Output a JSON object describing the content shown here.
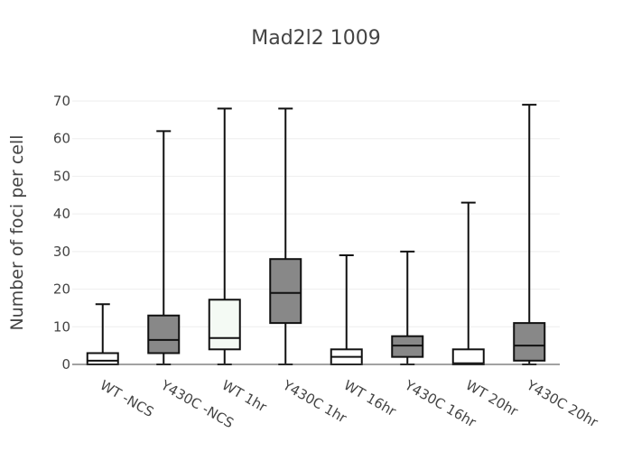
{
  "chart_data": {
    "type": "box",
    "title": "Mad2l2 1009",
    "xlabel": "",
    "ylabel": "Number of foci per cell",
    "ylim": [
      0,
      70
    ],
    "yticks": [
      0,
      10,
      20,
      30,
      40,
      50,
      60,
      70
    ],
    "grid": true,
    "categories": [
      "WT -NCS",
      "Y430C -NCS",
      "WT 1hr",
      "Y430C 1hr",
      "WT 16hr",
      "Y430C 16hr",
      "WT 20hr",
      "Y430C 20hr"
    ],
    "boxes": [
      {
        "min": 0,
        "q1": 0,
        "median": 1,
        "q3": 3,
        "max": 16,
        "fill": "#ffffff"
      },
      {
        "min": 0,
        "q1": 3,
        "median": 6.5,
        "q3": 13,
        "max": 62,
        "fill": "#888888"
      },
      {
        "min": 0,
        "q1": 4,
        "median": 7,
        "q3": 17.2,
        "max": 68,
        "fill": "#f4faf4"
      },
      {
        "min": 0,
        "q1": 11,
        "median": 19,
        "q3": 28,
        "max": 68,
        "fill": "#888888"
      },
      {
        "min": 0,
        "q1": 0,
        "median": 2,
        "q3": 4,
        "max": 29,
        "fill": "#ffffff"
      },
      {
        "min": 0,
        "q1": 2,
        "median": 5,
        "q3": 7.5,
        "max": 30,
        "fill": "#888888"
      },
      {
        "min": 0,
        "q1": 0,
        "median": 0.3,
        "q3": 4,
        "max": 43,
        "fill": "#ffffff"
      },
      {
        "min": 0,
        "q1": 1,
        "median": 5,
        "q3": 11,
        "max": 69,
        "fill": "#888888"
      }
    ]
  }
}
